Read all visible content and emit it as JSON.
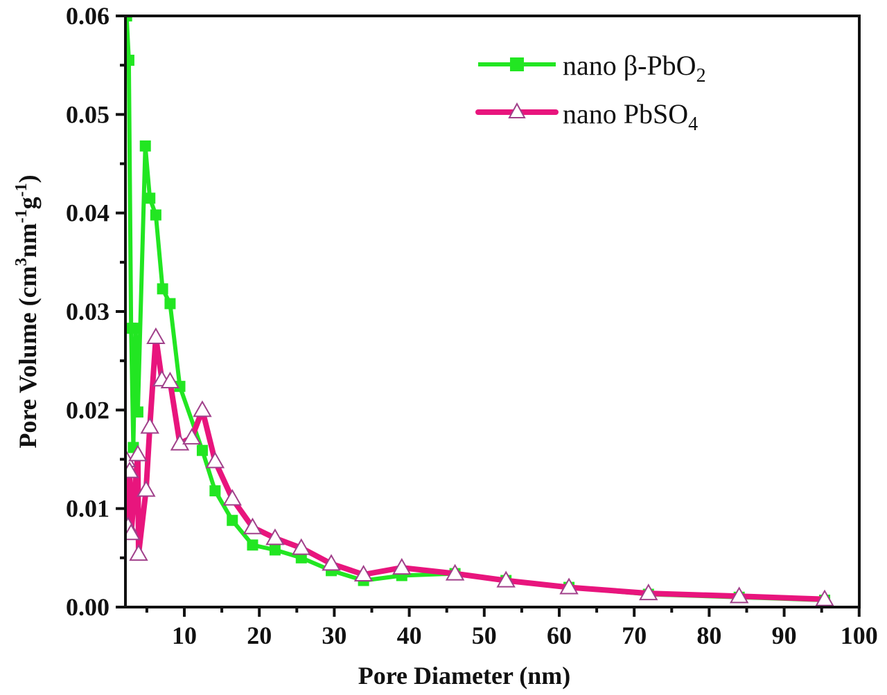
{
  "chart_data": {
    "type": "line",
    "title": "",
    "xlabel": "Pore Diameter (nm)",
    "ylabel": "Pore Volume (cm³nm⁻¹g⁻¹)",
    "ylabel_parts": {
      "base": "Pore Volume (cm",
      "sup1": "3",
      "mid": "nm",
      "sup2": "-1",
      "mid2": "g",
      "sup3": "-1",
      "end": ")"
    },
    "xlim": [
      2,
      100
    ],
    "ylim": [
      0,
      0.06
    ],
    "xticks": [
      10,
      20,
      30,
      40,
      50,
      60,
      70,
      80,
      90,
      100
    ],
    "yticks": [
      "0.00",
      "0.01",
      "0.02",
      "0.03",
      "0.04",
      "0.05",
      "0.06"
    ],
    "grid": false,
    "legend_position": "upper right",
    "series": [
      {
        "name": "nano β-PbO2",
        "legend_label": "nano β-PbO",
        "legend_sub": "2",
        "color": "#22e622",
        "marker": "filled-square",
        "x": [
          2.3,
          2.6,
          2.9,
          3.2,
          3.5,
          3.8,
          4.8,
          5.4,
          6.2,
          7.1,
          8.1,
          9.4,
          12.4,
          14.1,
          16.4,
          19.1,
          22.1,
          25.6,
          29.6,
          33.9,
          39.0,
          46.1,
          52.9,
          61.3,
          71.9,
          84.0,
          95.4
        ],
        "y": [
          0.06,
          0.0555,
          0.0283,
          0.0162,
          0.0283,
          0.0198,
          0.0468,
          0.0415,
          0.0398,
          0.0323,
          0.0308,
          0.0224,
          0.0159,
          0.0118,
          0.0088,
          0.0063,
          0.0058,
          0.005,
          0.0037,
          0.0027,
          0.0032,
          0.0034,
          0.0027,
          0.002,
          0.0013,
          0.001,
          0.0007
        ]
      },
      {
        "name": "nano PbSO4",
        "legend_label": "nano PbSO",
        "legend_sub": "4",
        "color": "#e8157d",
        "marker": "open-triangle",
        "x": [
          2.3,
          2.5,
          2.7,
          2.9,
          3.8,
          3.9,
          4.9,
          5.4,
          6.2,
          7.0,
          8.1,
          9.4,
          11.0,
          12.4,
          14.1,
          16.4,
          19.1,
          22.1,
          25.6,
          29.6,
          33.9,
          39.0,
          46.1,
          52.9,
          61.3,
          71.9,
          84.0,
          95.4
        ],
        "y": [
          0.0149,
          0.0082,
          0.0138,
          0.0075,
          0.0155,
          0.0054,
          0.0119,
          0.0183,
          0.0274,
          0.0231,
          0.0229,
          0.0166,
          0.0172,
          0.02,
          0.0148,
          0.011,
          0.0081,
          0.007,
          0.006,
          0.0044,
          0.0033,
          0.004,
          0.0034,
          0.0027,
          0.002,
          0.0014,
          0.0011,
          0.0008
        ]
      }
    ]
  }
}
